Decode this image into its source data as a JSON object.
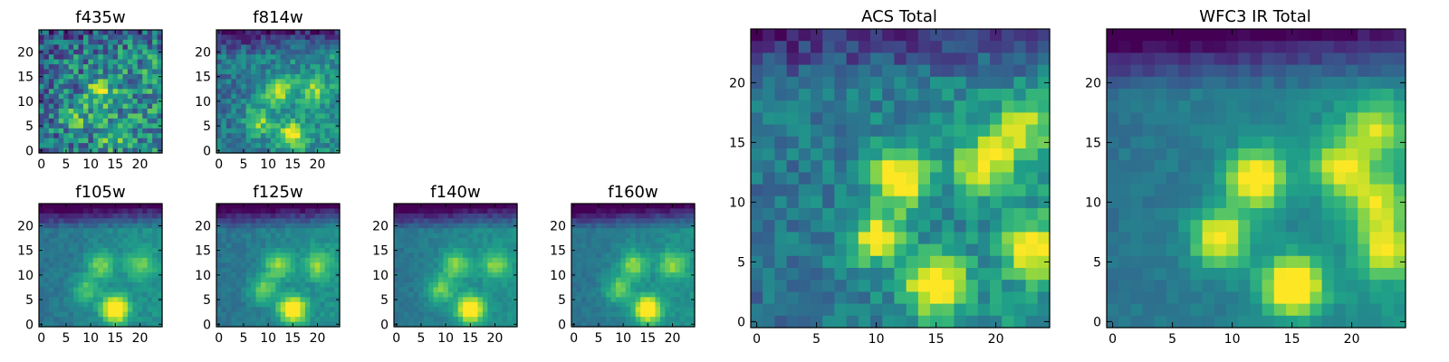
{
  "chart_data": [
    {
      "type": "heatmap",
      "title": "f435w",
      "xlim": [
        0,
        24
      ],
      "ylim": [
        0,
        24
      ],
      "x_ticks": [
        "0",
        "5",
        "10",
        "15",
        "20"
      ],
      "y_ticks": [
        "0",
        "5",
        "10",
        "15",
        "20"
      ],
      "colormap": "viridis",
      "sources": [
        [
          12,
          12,
          0.45
        ],
        [
          15,
          3,
          0.35
        ],
        [
          7,
          7,
          0.3
        ]
      ],
      "noise": 0.55,
      "top_dark": 0.15
    },
    {
      "type": "heatmap",
      "title": "f814w",
      "xlim": [
        0,
        24
      ],
      "ylim": [
        0,
        24
      ],
      "x_ticks": [
        "0",
        "5",
        "10",
        "15",
        "20"
      ],
      "y_ticks": [
        "0",
        "5",
        "10",
        "15",
        "20"
      ],
      "colormap": "viridis",
      "sources": [
        [
          12,
          12,
          0.5
        ],
        [
          15,
          3,
          0.55
        ],
        [
          8,
          6,
          0.4
        ],
        [
          19,
          12,
          0.35
        ]
      ],
      "noise": 0.3,
      "top_dark": 0.35
    },
    {
      "type": "heatmap",
      "title": "f105w",
      "xlim": [
        0,
        24
      ],
      "ylim": [
        0,
        24
      ],
      "x_ticks": [
        "0",
        "5",
        "10",
        "15",
        "20"
      ],
      "y_ticks": [
        "0",
        "5",
        "10",
        "15",
        "20"
      ],
      "colormap": "viridis",
      "sources": [
        [
          12,
          12,
          0.35
        ],
        [
          15,
          3,
          0.75
        ],
        [
          9,
          7,
          0.3
        ],
        [
          20,
          12,
          0.3
        ]
      ],
      "noise": 0.12,
      "top_dark": 0.5
    },
    {
      "type": "heatmap",
      "title": "f125w",
      "xlim": [
        0,
        24
      ],
      "ylim": [
        0,
        24
      ],
      "x_ticks": [
        "0",
        "5",
        "10",
        "15",
        "20"
      ],
      "y_ticks": [
        "0",
        "5",
        "10",
        "15",
        "20"
      ],
      "colormap": "viridis",
      "sources": [
        [
          12,
          12,
          0.4
        ],
        [
          15,
          3,
          0.75
        ],
        [
          9,
          7,
          0.35
        ],
        [
          20,
          12,
          0.35
        ]
      ],
      "noise": 0.12,
      "top_dark": 0.5
    },
    {
      "type": "heatmap",
      "title": "f140w",
      "xlim": [
        0,
        24
      ],
      "ylim": [
        0,
        24
      ],
      "x_ticks": [
        "0",
        "5",
        "10",
        "15",
        "20"
      ],
      "y_ticks": [
        "0",
        "5",
        "10",
        "15",
        "20"
      ],
      "colormap": "viridis",
      "sources": [
        [
          12,
          12,
          0.4
        ],
        [
          15,
          3,
          0.75
        ],
        [
          9,
          7,
          0.35
        ],
        [
          20,
          12,
          0.35
        ]
      ],
      "noise": 0.1,
      "top_dark": 0.5
    },
    {
      "type": "heatmap",
      "title": "f160w",
      "xlim": [
        0,
        24
      ],
      "ylim": [
        0,
        24
      ],
      "x_ticks": [
        "0",
        "5",
        "10",
        "15",
        "20"
      ],
      "y_ticks": [
        "0",
        "5",
        "10",
        "15",
        "20"
      ],
      "colormap": "viridis",
      "sources": [
        [
          12,
          12,
          0.4
        ],
        [
          15,
          3,
          0.75
        ],
        [
          9,
          7,
          0.35
        ],
        [
          20,
          12,
          0.35
        ]
      ],
      "noise": 0.1,
      "top_dark": 0.5
    },
    {
      "type": "heatmap",
      "title": "ACS Total",
      "xlim": [
        0,
        24
      ],
      "ylim": [
        0,
        24
      ],
      "x_ticks": [
        "0",
        "5",
        "10",
        "15",
        "20"
      ],
      "y_ticks": [
        "0",
        "5",
        "10",
        "15",
        "20"
      ],
      "colormap": "viridis",
      "sources": [
        [
          12,
          12,
          0.75
        ],
        [
          15,
          3,
          0.8
        ],
        [
          10,
          7,
          0.55
        ],
        [
          19,
          13,
          0.55
        ],
        [
          23,
          6,
          0.55
        ],
        [
          22,
          16,
          0.45
        ]
      ],
      "noise": 0.25,
      "top_dark": 0.3
    },
    {
      "type": "heatmap",
      "title": "WFC3 IR Total",
      "xlim": [
        0,
        24
      ],
      "ylim": [
        0,
        24
      ],
      "x_ticks": [
        "0",
        "5",
        "10",
        "15",
        "20"
      ],
      "y_ticks": [
        "0",
        "5",
        "10",
        "15",
        "20"
      ],
      "colormap": "viridis",
      "sources": [
        [
          12,
          12,
          0.75
        ],
        [
          15,
          3,
          0.85
        ],
        [
          9,
          7,
          0.65
        ],
        [
          19,
          13,
          0.5
        ],
        [
          23,
          6,
          0.5
        ],
        [
          22,
          16,
          0.45
        ],
        [
          22,
          10,
          0.45
        ]
      ],
      "noise": 0.1,
      "top_dark": 0.45
    }
  ]
}
